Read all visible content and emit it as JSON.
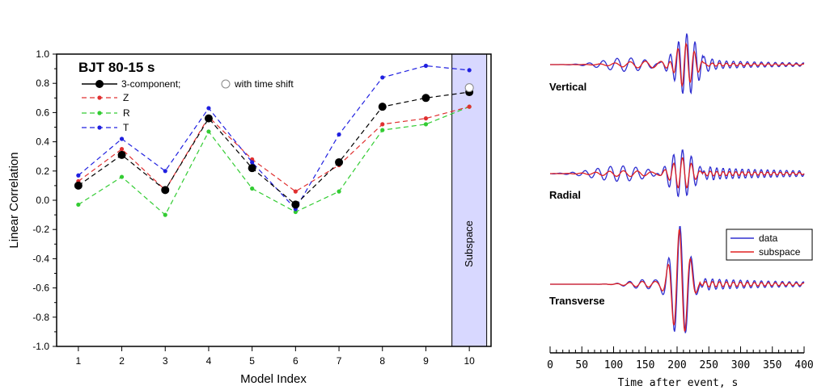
{
  "chart_data": [
    {
      "type": "line",
      "title": "BJT 80-15 s",
      "xlabel": "Model Index",
      "ylabel": "Linear Correlation",
      "x": [
        1,
        2,
        3,
        4,
        5,
        6,
        7,
        8,
        9,
        10
      ],
      "xlim": [
        0.5,
        10.5
      ],
      "ylim": [
        -1.0,
        1.0
      ],
      "xticks": [
        "1",
        "2",
        "3",
        "4",
        "5",
        "6",
        "7",
        "8",
        "9",
        "10"
      ],
      "yticks": [
        "1.0",
        "0.8",
        "0.6",
        "0.4",
        "0.2",
        "0.0",
        "-0.2",
        "-0.4",
        "-0.6",
        "-0.8",
        "-1.0"
      ],
      "series": [
        {
          "name": "3-component;",
          "color": "#000000",
          "marker": "large-dot",
          "values": [
            0.1,
            0.31,
            0.07,
            0.56,
            0.22,
            -0.03,
            0.26,
            0.64,
            0.7,
            0.74
          ]
        },
        {
          "name": "Z",
          "color": "#e03030",
          "marker": "small-dot",
          "values": [
            0.13,
            0.35,
            0.07,
            0.57,
            0.28,
            0.06,
            0.24,
            0.52,
            0.56,
            0.64
          ]
        },
        {
          "name": "R",
          "color": "#33cc33",
          "marker": "small-dot",
          "values": [
            -0.03,
            0.16,
            -0.1,
            0.47,
            0.08,
            -0.08,
            0.06,
            0.48,
            0.52,
            0.64
          ]
        },
        {
          "name": "T",
          "color": "#2020e0",
          "marker": "small-dot",
          "values": [
            0.17,
            0.42,
            0.2,
            0.63,
            0.26,
            -0.06,
            0.45,
            0.84,
            0.92,
            0.89
          ]
        }
      ],
      "extra_point": {
        "name": "with time shift",
        "marker": "open-circle",
        "x": 10,
        "y": 0.77
      },
      "shaded_region": {
        "label": "Subspace",
        "x_from": 9.6,
        "x_to": 10.4,
        "color": "#d8d8ff"
      },
      "grid": false,
      "legend": "top-left"
    },
    {
      "type": "line",
      "title": "",
      "xlabel": "Time after event, s",
      "ylabel": "",
      "xlim": [
        0,
        400
      ],
      "xticks": [
        "0",
        "50",
        "100",
        "150",
        "200",
        "250",
        "300",
        "350",
        "400"
      ],
      "panels": [
        "Vertical",
        "Radial",
        "Transverse"
      ],
      "series": [
        {
          "name": "data",
          "color": "#3030d0"
        },
        {
          "name": "subspace",
          "color": "#e02020"
        }
      ],
      "legend": "right"
    }
  ]
}
